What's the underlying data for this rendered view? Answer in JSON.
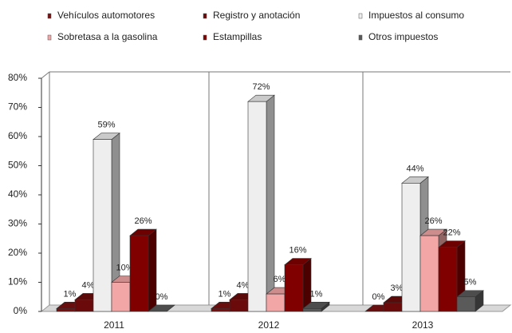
{
  "chart_data": {
    "type": "bar3d",
    "categories": [
      "2011",
      "2012",
      "2013"
    ],
    "series": [
      {
        "name": "Vehículos automotores",
        "color": "#7a1010",
        "values": [
          1,
          1,
          0
        ],
        "value_labels": [
          "1%",
          "1%",
          "0%"
        ]
      },
      {
        "name": "Registro y anotación",
        "color": "#6b0a0a",
        "values": [
          4,
          4,
          3
        ],
        "value_labels": [
          "4%",
          "4%",
          "3%"
        ]
      },
      {
        "name": "Impuestos al consumo",
        "color": "#eeeeee",
        "values": [
          59,
          72,
          44
        ],
        "value_labels": [
          "59%",
          "72%",
          "44%"
        ]
      },
      {
        "name": "Sobretasa a la gasolina",
        "color": "#f2a6a6",
        "values": [
          10,
          6,
          26
        ],
        "value_labels": [
          "10%",
          "6%",
          "26%"
        ]
      },
      {
        "name": "Estampillas",
        "color": "#800000",
        "values": [
          26,
          16,
          22
        ],
        "value_labels": [
          "26%",
          "16%",
          "22%"
        ]
      },
      {
        "name": "Otros impuestos",
        "color": "#5a5a5a",
        "values": [
          0,
          1,
          5
        ],
        "value_labels": [
          "0%",
          "1%",
          "5%"
        ]
      }
    ],
    "ylim": [
      0,
      80
    ],
    "yticks": [
      {
        "value": 0,
        "label": "0%"
      },
      {
        "value": 10,
        "label": "10%"
      },
      {
        "value": 20,
        "label": "20%"
      },
      {
        "value": 30,
        "label": "30%"
      },
      {
        "value": 40,
        "label": "40%"
      },
      {
        "value": 50,
        "label": "50%"
      },
      {
        "value": 60,
        "label": "60%"
      },
      {
        "value": 70,
        "label": "70%"
      },
      {
        "value": 80,
        "label": "80%"
      }
    ],
    "legend": "top"
  }
}
